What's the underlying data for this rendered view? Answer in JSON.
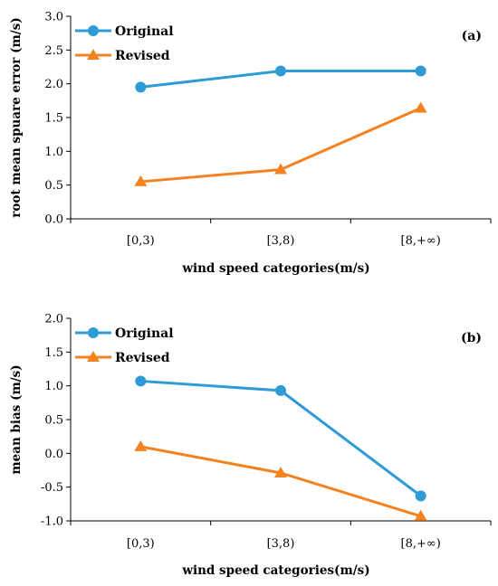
{
  "chart_data": [
    {
      "type": "line",
      "panel_label": "(a)",
      "categories": [
        "[0,3)",
        "[3,8)",
        "[8,+∞)"
      ],
      "xlabel": "wind speed categories(m/s)",
      "ylabel": "root mean spuare error (m/s)",
      "ylim": [
        0,
        3
      ],
      "yticks": [
        "0.0",
        "0.5",
        "1.0",
        "1.5",
        "2.0",
        "2.5",
        "3.0"
      ],
      "grid": false,
      "legend_position": "top-left",
      "series": [
        {
          "name": "Original",
          "values": [
            1.95,
            2.19,
            2.19
          ],
          "color": "#2e9bd6",
          "marker": "circle"
        },
        {
          "name": "Revised",
          "values": [
            0.55,
            0.73,
            1.64
          ],
          "color": "#f58220",
          "marker": "triangle"
        }
      ]
    },
    {
      "type": "line",
      "panel_label": "(b)",
      "categories": [
        "[0,3)",
        "[3,8)",
        "[8,+∞)"
      ],
      "xlabel": "wind speed categories(m/s)",
      "ylabel": "mean bias (m/s)",
      "ylim": [
        -1,
        2
      ],
      "yticks": [
        "-1.0",
        "-0.5",
        "0.0",
        "0.5",
        "1.0",
        "1.5",
        "2.0"
      ],
      "grid": false,
      "legend_position": "top-left",
      "series": [
        {
          "name": "Original",
          "values": [
            1.07,
            0.93,
            -0.63
          ],
          "color": "#2e9bd6",
          "marker": "circle"
        },
        {
          "name": "Revised",
          "values": [
            0.1,
            -0.29,
            -0.93
          ],
          "color": "#f58220",
          "marker": "triangle"
        }
      ]
    }
  ]
}
